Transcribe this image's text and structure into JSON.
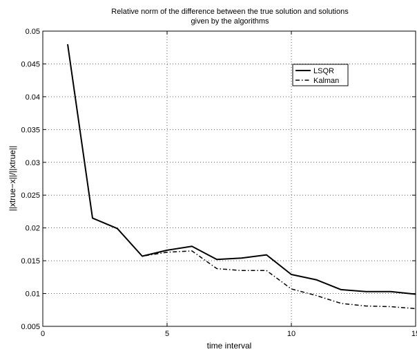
{
  "chart_data": {
    "type": "line",
    "title_line1": "Relative norm of the difference between the true solution and solutions",
    "title_line2": "given by the algorithms",
    "xlabel": "time interval",
    "ylabel": "||xtrue−x||/||xtrue||",
    "xlim": [
      0,
      15
    ],
    "ylim": [
      0.005,
      0.05
    ],
    "xticks": [
      0,
      5,
      10,
      15
    ],
    "xtick_labels": [
      "0",
      "5",
      "10",
      "15"
    ],
    "yticks": [
      0.005,
      0.01,
      0.015,
      0.02,
      0.025,
      0.03,
      0.035,
      0.04,
      0.045,
      0.05
    ],
    "ytick_labels": [
      "0.005",
      "0.01",
      "0.015",
      "0.02",
      "0.025",
      "0.03",
      "0.035",
      "0.04",
      "0.045",
      "0.05"
    ],
    "grid": true,
    "legend_position": "top-right",
    "series": [
      {
        "name": "LSQR",
        "style": "solid",
        "color": "#000000",
        "x": [
          1,
          2,
          3,
          4,
          5,
          6,
          7,
          8,
          9,
          10,
          11,
          12,
          13,
          14,
          15
        ],
        "y": [
          0.048,
          0.0215,
          0.0199,
          0.0157,
          0.0166,
          0.0172,
          0.0152,
          0.0154,
          0.0159,
          0.0129,
          0.0121,
          0.0106,
          0.0103,
          0.0103,
          0.0099
        ]
      },
      {
        "name": "Kalman",
        "style": "dashdot",
        "color": "#000000",
        "x": [
          1,
          2,
          3,
          4,
          5,
          6,
          7,
          8,
          9,
          10,
          11,
          12,
          13,
          14,
          15
        ],
        "y": [
          0.048,
          0.0215,
          0.0199,
          0.0157,
          0.0163,
          0.0165,
          0.0138,
          0.0135,
          0.0135,
          0.0107,
          0.0097,
          0.0085,
          0.0081,
          0.008,
          0.0077
        ]
      }
    ]
  }
}
